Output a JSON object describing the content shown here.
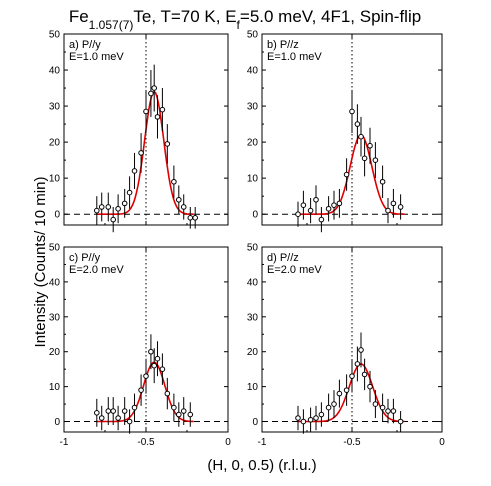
{
  "title": {
    "base": "Fe",
    "subscript": "1.057(7)",
    "mid": "Te, T=70 K, E",
    "subscript2": "f",
    "rest": "=5.0 meV, 4F1, Spin-flip"
  },
  "ylabel": "Intensity (Counts/ 10 min)",
  "xlabel": "(H, 0, 0.5) (r.l.u.)",
  "colors": {
    "fit": "#e00000",
    "data": "#000000",
    "frame": "#000000"
  },
  "chart_data": [
    {
      "type": "scatter",
      "panel_label": "a) P//y",
      "energy_label": "E=1.0 meV",
      "xlim": [
        -1,
        0
      ],
      "ylim": [
        -3,
        50
      ],
      "yticks": [
        0,
        10,
        20,
        30,
        40,
        50
      ],
      "xticks": [
        -1,
        -0.5,
        0
      ],
      "fit": {
        "amp": 34,
        "center": -0.45,
        "sigma": 0.058
      },
      "points": [
        {
          "x": -0.8,
          "y": 1.0,
          "err": 4.0
        },
        {
          "x": -0.77,
          "y": 2.0,
          "err": 4.0
        },
        {
          "x": -0.73,
          "y": 2.0,
          "err": 4.0
        },
        {
          "x": -0.7,
          "y": -1.5,
          "err": 3.5
        },
        {
          "x": -0.67,
          "y": 1.5,
          "err": 4.0
        },
        {
          "x": -0.63,
          "y": 3.0,
          "err": 4.0
        },
        {
          "x": -0.6,
          "y": 6.0,
          "err": 4.5
        },
        {
          "x": -0.57,
          "y": 12.0,
          "err": 5.0
        },
        {
          "x": -0.53,
          "y": 17.0,
          "err": 5.5
        },
        {
          "x": -0.5,
          "y": 28.5,
          "err": 6.0
        },
        {
          "x": -0.47,
          "y": 33.5,
          "err": 6.5
        },
        {
          "x": -0.45,
          "y": 35.0,
          "err": 6.5
        },
        {
          "x": -0.43,
          "y": 27.0,
          "err": 6.0
        },
        {
          "x": -0.4,
          "y": 29.0,
          "err": 6.0
        },
        {
          "x": -0.37,
          "y": 19.5,
          "err": 5.5
        },
        {
          "x": -0.33,
          "y": 9.0,
          "err": 4.5
        },
        {
          "x": -0.3,
          "y": 4.0,
          "err": 4.0
        },
        {
          "x": -0.27,
          "y": 2.0,
          "err": 3.5
        },
        {
          "x": -0.23,
          "y": -1.0,
          "err": 3.0
        },
        {
          "x": -0.2,
          "y": -1.0,
          "err": 3.0
        }
      ]
    },
    {
      "type": "scatter",
      "panel_label": "b) P//z",
      "energy_label": "E=1.0 meV",
      "xlim": [
        -1,
        0
      ],
      "ylim": [
        -3,
        50
      ],
      "yticks": [
        0,
        10,
        20,
        30,
        40,
        50
      ],
      "xticks": [
        -1,
        -0.5,
        0
      ],
      "fit": {
        "amp": 22,
        "center": -0.45,
        "sigma": 0.06
      },
      "points": [
        {
          "x": -0.8,
          "y": 0.0,
          "err": 3.5
        },
        {
          "x": -0.77,
          "y": 2.5,
          "err": 4.0
        },
        {
          "x": -0.73,
          "y": 1.0,
          "err": 3.5
        },
        {
          "x": -0.7,
          "y": 4.0,
          "err": 4.0
        },
        {
          "x": -0.67,
          "y": -1.5,
          "err": 3.5
        },
        {
          "x": -0.63,
          "y": 1.5,
          "err": 3.5
        },
        {
          "x": -0.6,
          "y": 2.5,
          "err": 4.0
        },
        {
          "x": -0.57,
          "y": 3.0,
          "err": 4.0
        },
        {
          "x": -0.53,
          "y": 11.0,
          "err": 4.5
        },
        {
          "x": -0.5,
          "y": 28.5,
          "err": 6.0
        },
        {
          "x": -0.47,
          "y": 25.0,
          "err": 5.5
        },
        {
          "x": -0.45,
          "y": 21.5,
          "err": 5.5
        },
        {
          "x": -0.43,
          "y": 15.5,
          "err": 5.0
        },
        {
          "x": -0.4,
          "y": 19.0,
          "err": 5.0
        },
        {
          "x": -0.37,
          "y": 15.0,
          "err": 5.0
        },
        {
          "x": -0.33,
          "y": 9.0,
          "err": 4.5
        },
        {
          "x": -0.3,
          "y": 1.0,
          "err": 3.5
        },
        {
          "x": -0.27,
          "y": 3.0,
          "err": 4.0
        },
        {
          "x": -0.23,
          "y": 2.0,
          "err": 3.5
        }
      ]
    },
    {
      "type": "scatter",
      "panel_label": "c) P//y",
      "energy_label": "E=2.0 meV",
      "xlim": [
        -1,
        0
      ],
      "ylim": [
        -3,
        50
      ],
      "yticks": [
        0,
        10,
        20,
        30,
        40,
        50
      ],
      "xticks": [
        -1,
        -0.5,
        0
      ],
      "fit": {
        "amp": 17,
        "center": -0.45,
        "sigma": 0.065
      },
      "points": [
        {
          "x": -0.8,
          "y": 2.5,
          "err": 4.0
        },
        {
          "x": -0.77,
          "y": 1.0,
          "err": 3.5
        },
        {
          "x": -0.73,
          "y": 3.0,
          "err": 4.0
        },
        {
          "x": -0.7,
          "y": 3.0,
          "err": 4.0
        },
        {
          "x": -0.67,
          "y": 1.0,
          "err": 3.5
        },
        {
          "x": -0.63,
          "y": 3.0,
          "err": 4.0
        },
        {
          "x": -0.6,
          "y": 0.0,
          "err": 3.5
        },
        {
          "x": -0.57,
          "y": 4.0,
          "err": 4.0
        },
        {
          "x": -0.53,
          "y": 9.0,
          "err": 4.5
        },
        {
          "x": -0.5,
          "y": 13.0,
          "err": 5.0
        },
        {
          "x": -0.47,
          "y": 20.0,
          "err": 5.0
        },
        {
          "x": -0.45,
          "y": 16.0,
          "err": 5.0
        },
        {
          "x": -0.43,
          "y": 18.0,
          "err": 5.0
        },
        {
          "x": -0.4,
          "y": 15.0,
          "err": 4.5
        },
        {
          "x": -0.37,
          "y": 8.0,
          "err": 4.5
        },
        {
          "x": -0.33,
          "y": 4.0,
          "err": 4.0
        },
        {
          "x": -0.3,
          "y": 2.0,
          "err": 3.5
        },
        {
          "x": -0.27,
          "y": 3.0,
          "err": 4.0
        },
        {
          "x": -0.23,
          "y": 2.0,
          "err": 3.5
        }
      ]
    },
    {
      "type": "scatter",
      "panel_label": "d) P//z",
      "energy_label": "E=2.0 meV",
      "xlim": [
        -1,
        0
      ],
      "ylim": [
        -3,
        50
      ],
      "yticks": [
        0,
        10,
        20,
        30,
        40,
        50
      ],
      "xticks": [
        -1,
        -0.5,
        0
      ],
      "fit": {
        "amp": 16.5,
        "center": -0.45,
        "sigma": 0.065
      },
      "points": [
        {
          "x": -0.8,
          "y": 1.0,
          "err": 3.5
        },
        {
          "x": -0.77,
          "y": 0.0,
          "err": 3.5
        },
        {
          "x": -0.73,
          "y": 0.5,
          "err": 3.5
        },
        {
          "x": -0.7,
          "y": 1.0,
          "err": 3.5
        },
        {
          "x": -0.67,
          "y": 2.0,
          "err": 3.5
        },
        {
          "x": -0.63,
          "y": 4.0,
          "err": 4.0
        },
        {
          "x": -0.6,
          "y": 5.0,
          "err": 4.0
        },
        {
          "x": -0.57,
          "y": 8.0,
          "err": 4.0
        },
        {
          "x": -0.53,
          "y": 9.0,
          "err": 4.5
        },
        {
          "x": -0.5,
          "y": 13.0,
          "err": 4.5
        },
        {
          "x": -0.47,
          "y": 16.5,
          "err": 5.0
        },
        {
          "x": -0.45,
          "y": 20.5,
          "err": 5.0
        },
        {
          "x": -0.43,
          "y": 13.5,
          "err": 4.5
        },
        {
          "x": -0.4,
          "y": 10.0,
          "err": 4.5
        },
        {
          "x": -0.37,
          "y": 5.0,
          "err": 4.0
        },
        {
          "x": -0.33,
          "y": 4.0,
          "err": 4.0
        },
        {
          "x": -0.3,
          "y": 3.0,
          "err": 3.5
        },
        {
          "x": -0.27,
          "y": 3.0,
          "err": 3.5
        },
        {
          "x": -0.23,
          "y": 0.0,
          "err": 3.0
        }
      ]
    }
  ]
}
